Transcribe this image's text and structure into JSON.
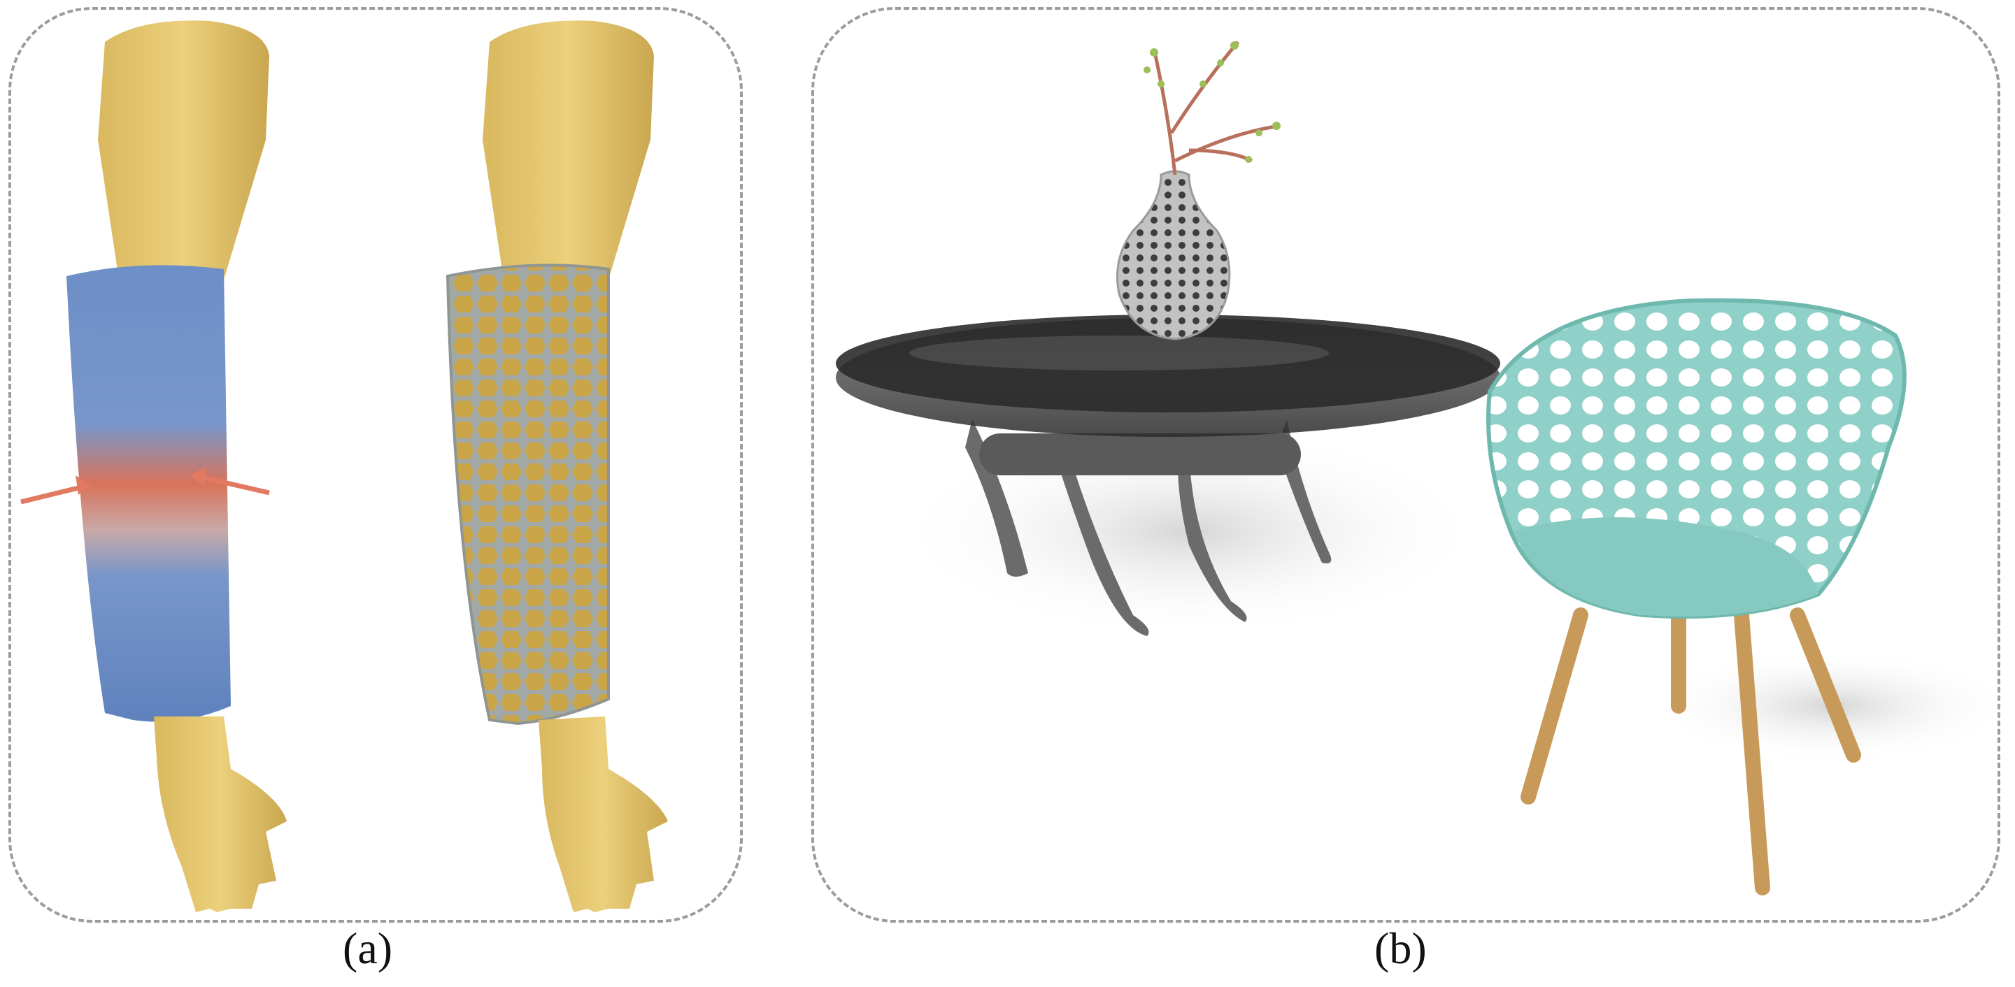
{
  "figure": {
    "panels": [
      {
        "id": "a",
        "caption": "(a)"
      },
      {
        "id": "b",
        "caption": "(b)"
      }
    ]
  },
  "colors": {
    "skin": "#e6c56e",
    "skin_shade": "#c9a74f",
    "cast_blue": "#6d8fc7",
    "stress_red": "#d8735a",
    "arrow": "#e27a62",
    "lattice_gray": "#a2a8a6",
    "glass": "#3a3a3a",
    "table_metal": "#6b6b6b",
    "vase": "#bdbdbd",
    "chair_teal": "#8fd0c8",
    "wood": "#c79a5a"
  }
}
